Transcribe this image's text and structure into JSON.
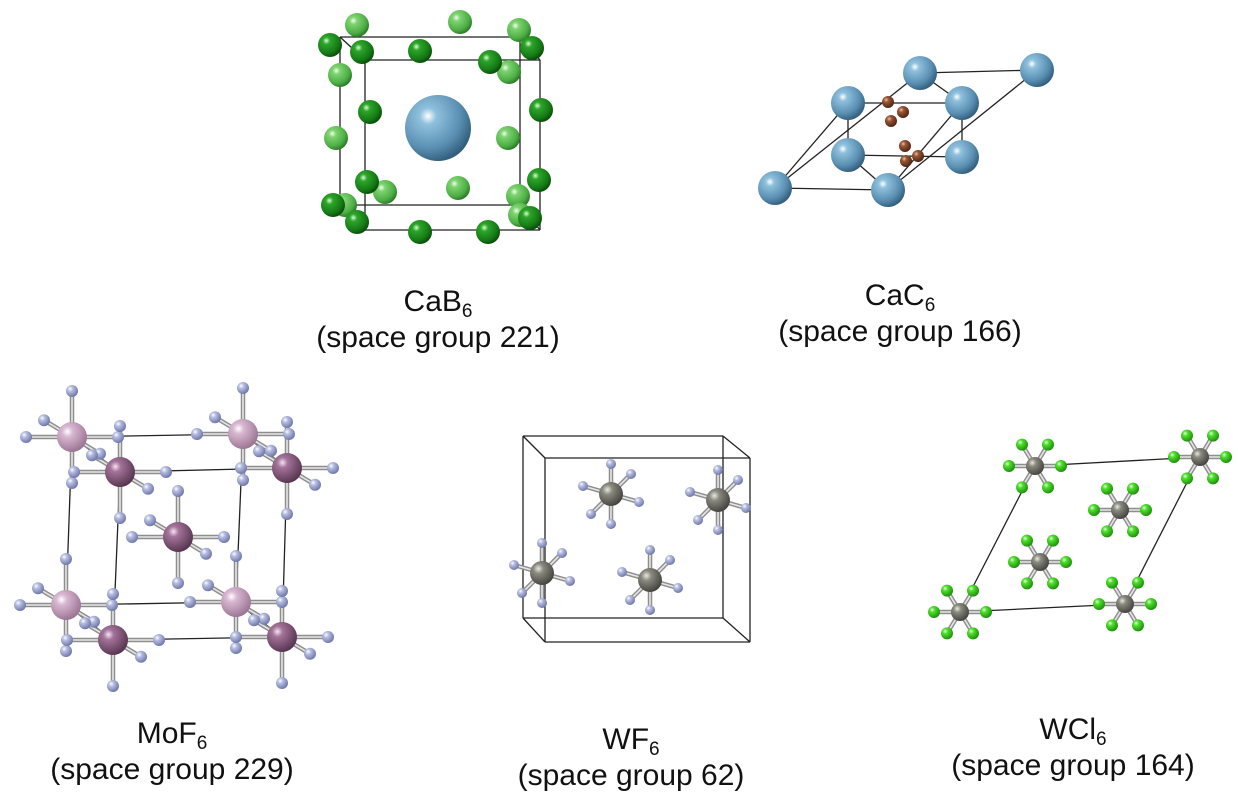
{
  "panels": [
    {
      "id": "cab6",
      "formula_base": "CaB",
      "formula_sub": "6",
      "space_group": "(space group 221)",
      "atoms": [
        "Ca",
        "B"
      ],
      "colors": {
        "Ca": "#5f95b8",
        "B_dark": "#1c8a1c",
        "B_light": "#5dbd52"
      }
    },
    {
      "id": "cac6",
      "formula_base": "CaC",
      "formula_sub": "6",
      "space_group": "(space group 166)",
      "atoms": [
        "Ca",
        "C"
      ],
      "colors": {
        "Ca": "#6ba3c9",
        "C": "#8a4a2a"
      }
    },
    {
      "id": "mof6",
      "formula_base": "MoF",
      "formula_sub": "6",
      "space_group": "(space group 229)",
      "atoms": [
        "Mo",
        "F"
      ],
      "colors": {
        "Mo_dark": "#8e5c82",
        "Mo_light": "#c9a3c0",
        "F": "#a9b0d9"
      }
    },
    {
      "id": "wf6",
      "formula_base": "WF",
      "formula_sub": "6",
      "space_group": "(space group 62)",
      "atoms": [
        "W",
        "F"
      ],
      "colors": {
        "W": "#7e7d74",
        "F": "#a9b0d9"
      }
    },
    {
      "id": "wcl6",
      "formula_base": "WCl",
      "formula_sub": "6",
      "space_group": "(space group 164)",
      "atoms": [
        "W",
        "Cl"
      ],
      "colors": {
        "W": "#7e7d74",
        "Cl": "#3cd61e"
      }
    }
  ]
}
